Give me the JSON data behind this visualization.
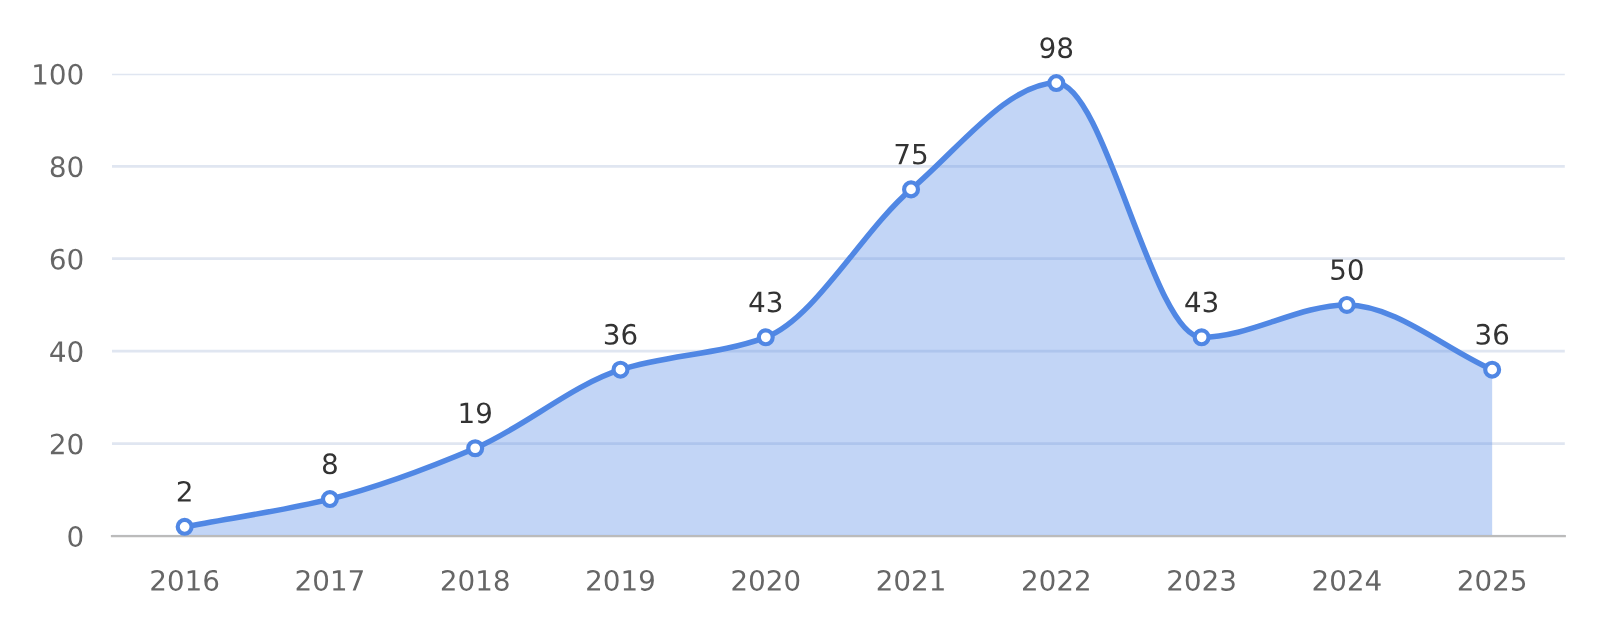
{
  "chart_data": {
    "type": "area",
    "categories": [
      "2016",
      "2017",
      "2018",
      "2019",
      "2020",
      "2021",
      "2022",
      "2023",
      "2024",
      "2025"
    ],
    "series": [
      {
        "color": "#5087e4",
        "values": [
          2,
          8,
          19,
          36,
          43,
          75,
          98,
          43,
          50,
          36
        ]
      }
    ],
    "ylim": [
      0,
      100
    ],
    "yticks": [
      0,
      20,
      40,
      60,
      80,
      100
    ],
    "grid": "y",
    "marker": "circle",
    "line_style": "solid",
    "data_labels": true
  }
}
